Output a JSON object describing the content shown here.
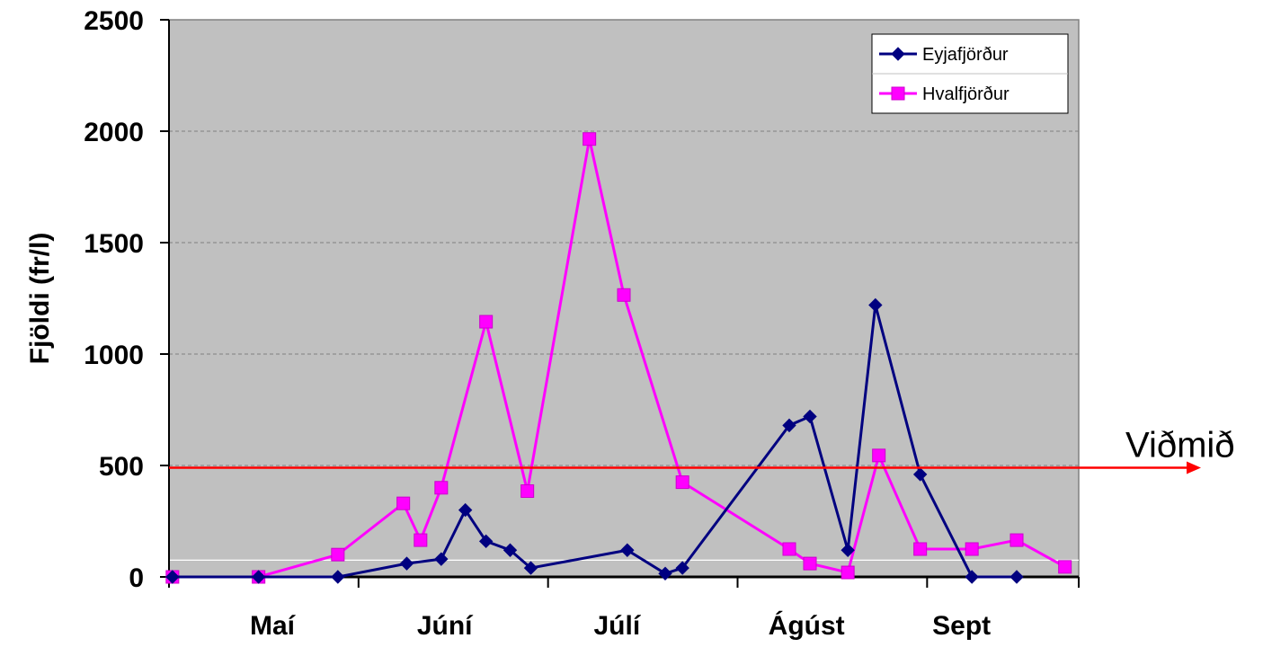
{
  "chart_data": {
    "type": "line",
    "ylabel": "Fjöldi (fr/l)",
    "xlabel": "",
    "ylim": [
      0,
      2500
    ],
    "yticks": [
      0,
      500,
      1000,
      1500,
      2000,
      2500
    ],
    "xlim": [
      0,
      26.4
    ],
    "month_labels": [
      {
        "label": "Maí",
        "x": 3
      },
      {
        "label": "Júní",
        "x": 8
      },
      {
        "label": "Júlí",
        "x": 13
      },
      {
        "label": "Ágúst",
        "x": 18.5
      },
      {
        "label": "Sept",
        "x": 23
      }
    ],
    "month_boundaries": [
      0,
      5.5,
      11,
      16.5,
      22,
      26.4
    ],
    "grid": true,
    "plot_background": "#c0c0c0",
    "legend_position": "top-right",
    "series": [
      {
        "name": "Eyjafjörður",
        "color": "#000080",
        "marker": "diamond",
        "x": [
          0.1,
          2.6,
          4.9,
          6.9,
          7.9,
          8.6,
          9.2,
          9.9,
          10.5,
          13.3,
          14.4,
          14.9,
          18.0,
          18.6,
          19.7,
          20.5,
          21.8,
          23.3,
          24.6
        ],
        "y": [
          0,
          0,
          0,
          60,
          80,
          300,
          160,
          120,
          40,
          120,
          15,
          40,
          680,
          720,
          120,
          1220,
          460,
          0,
          0
        ]
      },
      {
        "name": "Hvalfjörður",
        "color": "#ff00ff",
        "marker": "square",
        "x": [
          0.1,
          2.6,
          4.9,
          6.8,
          7.3,
          7.9,
          9.2,
          10.4,
          12.2,
          13.2,
          14.9,
          18.0,
          18.6,
          19.7,
          20.6,
          21.8,
          23.3,
          24.6,
          26.0
        ],
        "y": [
          0,
          0,
          100,
          330,
          165,
          400,
          1145,
          385,
          1965,
          1265,
          425,
          125,
          60,
          20,
          545,
          125,
          125,
          165,
          45
        ]
      }
    ],
    "reference_line": {
      "label": "Viðmið",
      "y": 490,
      "color": "#ff0000"
    }
  }
}
